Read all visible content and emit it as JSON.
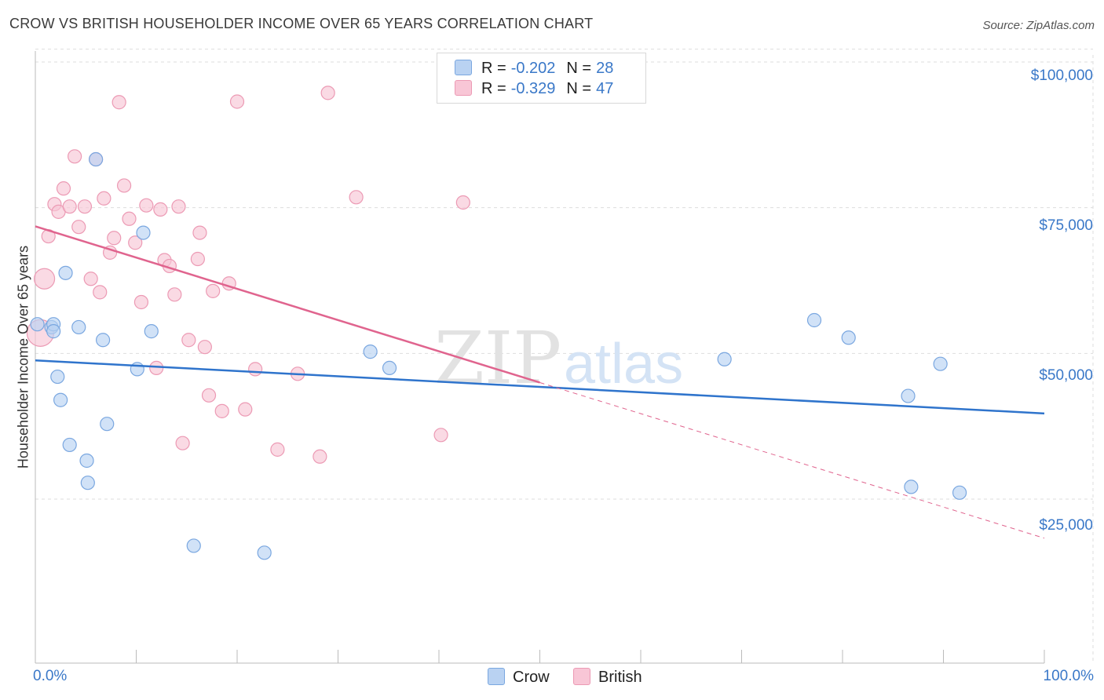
{
  "title": "CROW VS BRITISH HOUSEHOLDER INCOME OVER 65 YEARS CORRELATION CHART",
  "source": "Source: ZipAtlas.com",
  "watermark": {
    "zip": "ZIP",
    "atlas": "atlas"
  },
  "legend": {
    "rows": [
      {
        "r_label": "R =",
        "r_value": "-0.202",
        "n_label": "N =",
        "n_value": "28"
      },
      {
        "r_label": "R =",
        "r_value": "-0.329",
        "n_label": "N =",
        "n_value": "47"
      }
    ]
  },
  "bottom_legend": {
    "crow": "Crow",
    "british": "British"
  },
  "colors": {
    "crow_fill": "#b9d2f2",
    "crow_stroke": "#7aa7e0",
    "crow_line": "#2f74cc",
    "british_fill": "#f8c6d6",
    "british_stroke": "#ec9ab4",
    "british_line": "#e0648e",
    "axis_text": "#3a78c8",
    "grid": "#dddddd"
  },
  "chart_data": {
    "type": "scatter",
    "title": "CROW VS BRITISH HOUSEHOLDER INCOME OVER 65 YEARS CORRELATION CHART",
    "xlabel": "",
    "ylabel": "Householder Income Over 65 years",
    "xlim": [
      0,
      100
    ],
    "ylim": [
      0,
      105000
    ],
    "x_tick_labels": [
      "0.0%",
      "100.0%"
    ],
    "y_ticks": [
      25000,
      50000,
      75000,
      100000
    ],
    "y_tick_labels": [
      "$25,000",
      "$50,000",
      "$75,000",
      "$100,000"
    ],
    "series": [
      {
        "name": "Crow",
        "r": -0.202,
        "n": 28,
        "trend": {
          "x0": 0,
          "y0": 48800,
          "x1": 100,
          "y1": 39700
        },
        "points": [
          [
            0.2,
            55000
          ],
          [
            1.6,
            54500
          ],
          [
            1.8,
            55000
          ],
          [
            1.8,
            53800
          ],
          [
            2.2,
            46000
          ],
          [
            2.5,
            42000
          ],
          [
            3.0,
            63800
          ],
          [
            3.4,
            34300
          ],
          [
            4.3,
            54500
          ],
          [
            5.1,
            31600
          ],
          [
            5.2,
            27800
          ],
          [
            6.0,
            83300
          ],
          [
            6.7,
            52300
          ],
          [
            7.1,
            37900
          ],
          [
            10.1,
            47300
          ],
          [
            10.7,
            70700
          ],
          [
            11.5,
            53800
          ],
          [
            15.7,
            17000
          ],
          [
            22.7,
            15800
          ],
          [
            33.2,
            50300
          ],
          [
            35.1,
            47500
          ],
          [
            68.3,
            49000
          ],
          [
            77.2,
            55700
          ],
          [
            80.6,
            52700
          ],
          [
            89.7,
            48200
          ],
          [
            86.5,
            42700
          ],
          [
            86.8,
            27100
          ],
          [
            91.6,
            26100
          ]
        ]
      },
      {
        "name": "British",
        "r": -0.329,
        "n": 47,
        "trend": {
          "x0": 0,
          "y0": 71800,
          "x1": 50,
          "y1": 45000
        },
        "trend_dashed": {
          "x0": 50,
          "y0": 45000,
          "x1": 100,
          "y1": 18300
        },
        "points": [
          [
            0.5,
            53500
          ],
          [
            0.9,
            62800
          ],
          [
            1.3,
            70100
          ],
          [
            1.9,
            75600
          ],
          [
            2.3,
            74300
          ],
          [
            2.8,
            78300
          ],
          [
            3.4,
            75200
          ],
          [
            3.9,
            83800
          ],
          [
            4.3,
            71700
          ],
          [
            4.9,
            75200
          ],
          [
            5.5,
            62800
          ],
          [
            6.0,
            83300
          ],
          [
            6.4,
            60500
          ],
          [
            6.8,
            76600
          ],
          [
            7.4,
            67300
          ],
          [
            7.8,
            69800
          ],
          [
            8.3,
            93100
          ],
          [
            8.8,
            78800
          ],
          [
            9.3,
            73100
          ],
          [
            9.9,
            69000
          ],
          [
            10.5,
            58800
          ],
          [
            11.0,
            75400
          ],
          [
            12.0,
            47500
          ],
          [
            12.4,
            74700
          ],
          [
            12.8,
            66000
          ],
          [
            13.3,
            65000
          ],
          [
            13.8,
            60100
          ],
          [
            14.2,
            75200
          ],
          [
            14.6,
            34600
          ],
          [
            15.2,
            52300
          ],
          [
            16.1,
            66200
          ],
          [
            16.3,
            70700
          ],
          [
            16.8,
            51100
          ],
          [
            17.2,
            42800
          ],
          [
            17.6,
            60700
          ],
          [
            18.5,
            40100
          ],
          [
            19.2,
            62000
          ],
          [
            20.0,
            93200
          ],
          [
            20.8,
            40400
          ],
          [
            21.8,
            47300
          ],
          [
            24.0,
            33500
          ],
          [
            26.0,
            46500
          ],
          [
            28.2,
            32300
          ],
          [
            29.0,
            94700
          ],
          [
            31.8,
            76800
          ],
          [
            40.2,
            36000
          ],
          [
            42.4,
            75900
          ]
        ]
      }
    ]
  }
}
